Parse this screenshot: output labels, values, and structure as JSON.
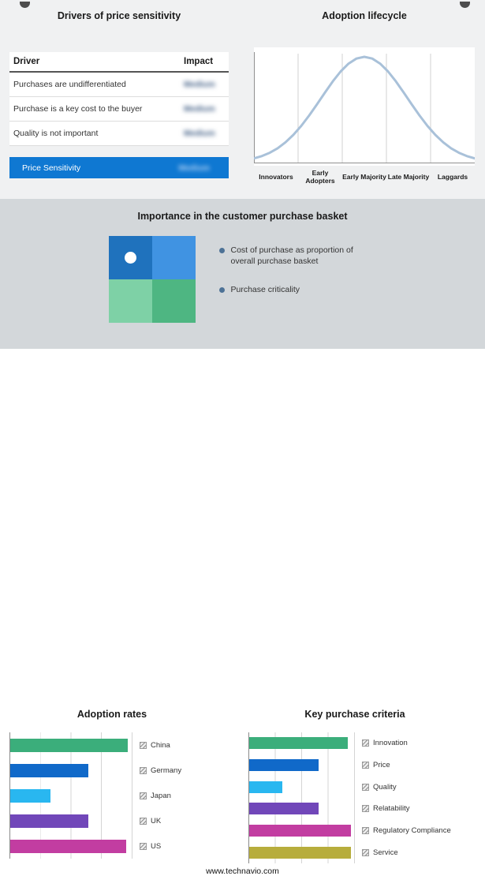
{
  "drivers_table": {
    "title": "Drivers of price sensitivity",
    "columns": {
      "driver": "Driver",
      "impact": "Impact"
    },
    "rows": [
      {
        "driver": "Purchases are undifferentiated",
        "impact": "Medium"
      },
      {
        "driver": "Purchase is a key cost to the buyer",
        "impact": "Medium"
      },
      {
        "driver": "Quality is not important",
        "impact": "Medium"
      }
    ],
    "highlight_row": {
      "driver": "Price Sensitivity",
      "impact": "Medium",
      "background": "#0f78d2"
    }
  },
  "adoption_lifecycle": {
    "title": "Adoption lifecycle",
    "stages": [
      "Innovators",
      "Early Adopters",
      "Early Majority",
      "Late Majority",
      "Laggards"
    ],
    "curve_color": "#a9c1d9"
  },
  "purchase_basket": {
    "title": "Importance in the customer purchase basket",
    "quadrant_colors": [
      "#1f72bd",
      "#4093e2",
      "#7ed1a6",
      "#4eb682"
    ],
    "legend": [
      "Cost of purchase as proportion of overall purchase basket",
      "Purchase criticality"
    ]
  },
  "chart_data": [
    {
      "type": "bar",
      "title": "Adoption rates",
      "orientation": "horizontal",
      "categories": [
        "China",
        "Germany",
        "Japan",
        "UK",
        "US"
      ],
      "values": [
        96,
        64,
        33,
        64,
        95
      ],
      "colors": [
        "#3bae7b",
        "#1069c9",
        "#29b7f0",
        "#7147b9",
        "#c23da1"
      ],
      "xlim": [
        0,
        100
      ],
      "grid": true,
      "legend_position": "right"
    },
    {
      "type": "bar",
      "title": "Key purchase criteria",
      "orientation": "horizontal",
      "categories": [
        "Innovation",
        "Price",
        "Quality",
        "Relatability",
        "Regulatory Compliance",
        "Service"
      ],
      "values": [
        93,
        66,
        31,
        66,
        96,
        96
      ],
      "colors": [
        "#3bae7b",
        "#1069c9",
        "#29b7f0",
        "#7147b9",
        "#c23da1",
        "#b7ad3c"
      ],
      "xlim": [
        0,
        100
      ],
      "grid": true,
      "legend_position": "right"
    }
  ],
  "footer": {
    "url": "www.technavio.com"
  }
}
